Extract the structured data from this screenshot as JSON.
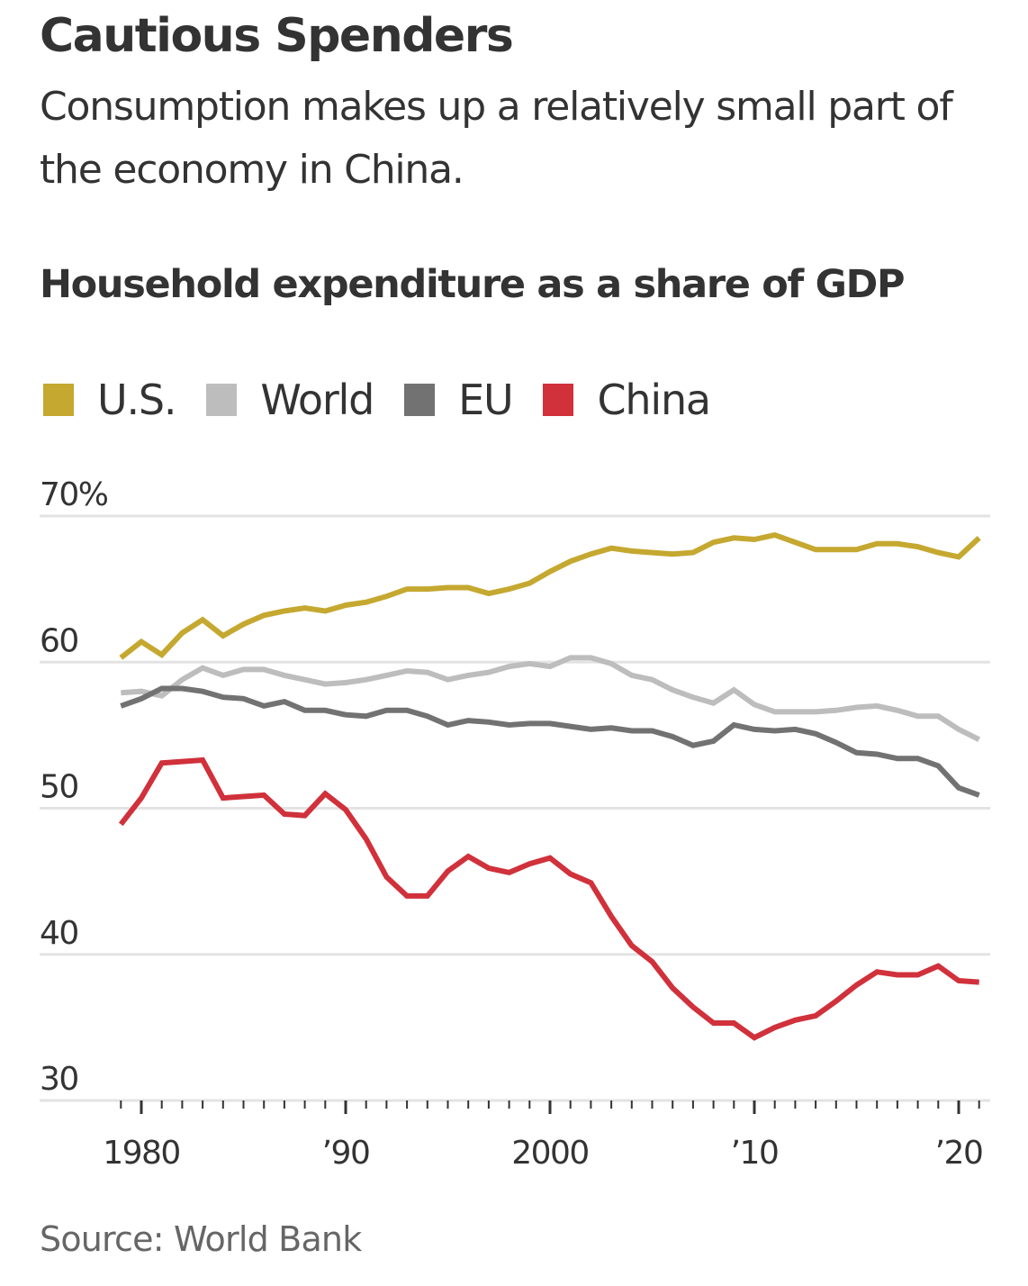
{
  "header": {
    "title": "Cautious Spenders",
    "subtitle": "Consumption makes up a relatively small part of the economy in China."
  },
  "footer": {
    "source": "Source: World Bank"
  },
  "chart_data": {
    "type": "line",
    "title": "Household expenditure as a share of GDP",
    "xlabel": "",
    "ylabel": "",
    "ylim": [
      30,
      70
    ],
    "xlim": [
      1979,
      2021
    ],
    "grid": true,
    "legend_position": "top-left",
    "y_ticks": [
      {
        "value": 70,
        "label": "70%"
      },
      {
        "value": 60,
        "label": "60"
      },
      {
        "value": 50,
        "label": "50"
      },
      {
        "value": 40,
        "label": "40"
      },
      {
        "value": 30,
        "label": "30"
      }
    ],
    "x_ticks": [
      {
        "value": 1980,
        "label": "1980"
      },
      {
        "value": 1990,
        "label": "’90"
      },
      {
        "value": 2000,
        "label": "2000"
      },
      {
        "value": 2010,
        "label": "’10"
      },
      {
        "value": 2020,
        "label": "’20"
      }
    ],
    "x": [
      1979,
      1980,
      1981,
      1982,
      1983,
      1984,
      1985,
      1986,
      1987,
      1988,
      1989,
      1990,
      1991,
      1992,
      1993,
      1994,
      1995,
      1996,
      1997,
      1998,
      1999,
      2000,
      2001,
      2002,
      2003,
      2004,
      2005,
      2006,
      2007,
      2008,
      2009,
      2010,
      2011,
      2012,
      2013,
      2014,
      2015,
      2016,
      2017,
      2018,
      2019,
      2020,
      2021
    ],
    "series": [
      {
        "name": "U.S.",
        "color": "#c5a830",
        "values": [
          60.3,
          61.4,
          60.5,
          62.0,
          62.9,
          61.8,
          62.6,
          63.2,
          63.5,
          63.7,
          63.5,
          63.9,
          64.1,
          64.5,
          65.0,
          65.0,
          65.1,
          65.1,
          64.7,
          65.0,
          65.4,
          66.2,
          66.9,
          67.4,
          67.8,
          67.6,
          67.5,
          67.4,
          67.5,
          68.2,
          68.5,
          68.4,
          68.7,
          68.2,
          67.7,
          67.7,
          67.7,
          68.1,
          68.1,
          67.9,
          67.5,
          67.2,
          68.5
        ]
      },
      {
        "name": "World",
        "color": "#bdbdbd",
        "values": [
          57.9,
          58.0,
          57.7,
          58.8,
          59.6,
          59.1,
          59.5,
          59.5,
          59.1,
          58.8,
          58.5,
          58.6,
          58.8,
          59.1,
          59.4,
          59.3,
          58.8,
          59.1,
          59.3,
          59.7,
          59.9,
          59.7,
          60.3,
          60.3,
          59.9,
          59.1,
          58.8,
          58.1,
          57.6,
          57.2,
          58.1,
          57.1,
          56.6,
          56.6,
          56.6,
          56.7,
          56.9,
          57.0,
          56.7,
          56.3,
          56.3,
          55.4,
          54.7
        ]
      },
      {
        "name": "EU",
        "color": "#727272",
        "values": [
          57.0,
          57.5,
          58.2,
          58.2,
          58.0,
          57.6,
          57.5,
          57.0,
          57.3,
          56.7,
          56.7,
          56.4,
          56.3,
          56.7,
          56.7,
          56.3,
          55.7,
          56.0,
          55.9,
          55.7,
          55.8,
          55.8,
          55.6,
          55.4,
          55.5,
          55.3,
          55.3,
          54.9,
          54.3,
          54.6,
          55.7,
          55.4,
          55.3,
          55.4,
          55.1,
          54.5,
          53.8,
          53.7,
          53.4,
          53.4,
          52.9,
          51.4,
          50.9
        ]
      },
      {
        "name": "China",
        "color": "#d0313b",
        "values": [
          48.9,
          50.7,
          53.1,
          53.2,
          53.3,
          50.7,
          50.8,
          50.9,
          49.6,
          49.5,
          51.0,
          49.9,
          47.9,
          45.3,
          44.0,
          44.0,
          45.7,
          46.7,
          45.9,
          45.6,
          46.2,
          46.6,
          45.5,
          44.9,
          42.6,
          40.6,
          39.5,
          37.7,
          36.4,
          35.3,
          35.3,
          34.3,
          35.0,
          35.5,
          35.8,
          36.8,
          37.9,
          38.8,
          38.6,
          38.6,
          39.2,
          38.2,
          38.1
        ]
      }
    ]
  }
}
